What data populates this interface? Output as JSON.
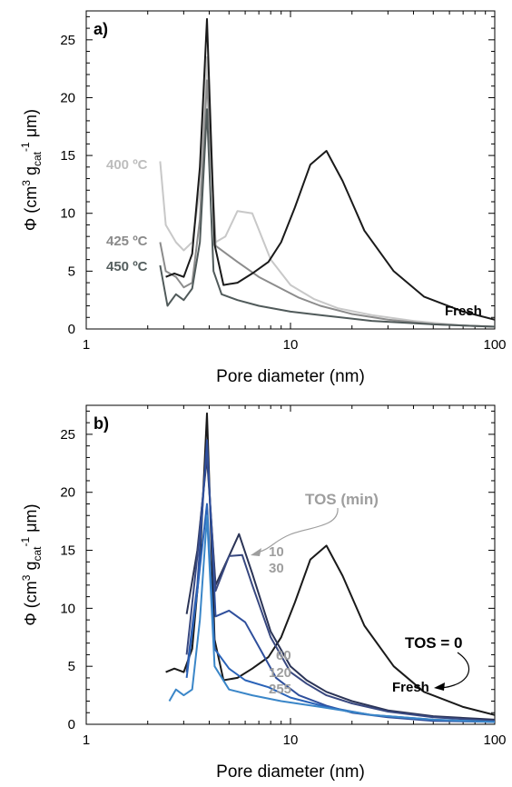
{
  "chart_data": [
    {
      "type": "line",
      "panel_label": "a)",
      "xlabel": "Pore diameter (nm)",
      "ylabel_main": "Φ (cm",
      "ylabel_parts": {
        "a": "3",
        "b": " g",
        "c": "cat",
        "d": "-1",
        "e": " μm)"
      },
      "xscale": "log",
      "xlim": [
        1,
        100
      ],
      "ylim": [
        0,
        27.5
      ],
      "x_ticks": [
        1,
        10,
        100
      ],
      "x_tick_labels": [
        "1",
        "10",
        "100"
      ],
      "y_ticks": [
        0,
        5,
        10,
        15,
        20,
        25
      ],
      "y_tick_labels": [
        "0",
        "5",
        "10",
        "15",
        "20",
        "25"
      ],
      "series": [
        {
          "name": "400 ºC",
          "color": "#c8c8c8",
          "label_color": "#bdbdbd",
          "x": [
            2.3,
            2.45,
            2.75,
            3.0,
            3.3,
            3.6,
            3.9,
            4.3,
            4.8,
            5.5,
            6.5,
            8,
            10,
            13,
            17,
            25,
            40,
            70,
            100
          ],
          "y": [
            14.5,
            9.0,
            7.5,
            6.8,
            7.5,
            12.0,
            23.5,
            7.5,
            8.0,
            10.2,
            10.0,
            6.0,
            3.8,
            2.6,
            1.8,
            1.2,
            0.7,
            0.3,
            0.2
          ]
        },
        {
          "name": "425 ºC",
          "color": "#8c8c8c",
          "label_color": "#8a8a8a",
          "x": [
            2.3,
            2.45,
            2.75,
            3.0,
            3.3,
            3.6,
            3.9,
            4.3,
            5.5,
            7,
            9,
            11,
            14,
            20,
            30,
            50,
            100
          ],
          "y": [
            7.5,
            5.0,
            4.5,
            3.6,
            4.0,
            9.5,
            21.5,
            7.2,
            5.8,
            4.5,
            3.5,
            2.7,
            2.0,
            1.3,
            0.8,
            0.4,
            0.2
          ]
        },
        {
          "name": "450 ºC",
          "color": "#505a5a",
          "label_color": "#555f5f",
          "x": [
            2.3,
            2.5,
            2.75,
            3.0,
            3.3,
            3.6,
            3.9,
            4.2,
            4.6,
            5.5,
            7,
            10,
            14,
            25,
            50,
            100
          ],
          "y": [
            5.5,
            2.0,
            3.0,
            2.5,
            3.5,
            7.5,
            19.0,
            5.0,
            3.0,
            2.5,
            2.0,
            1.5,
            1.2,
            0.7,
            0.4,
            0.2
          ]
        },
        {
          "name": "Fresh",
          "color": "#1a1a1a",
          "label_color": "#000000",
          "x": [
            2.45,
            2.7,
            3.0,
            3.3,
            3.6,
            3.9,
            4.25,
            4.7,
            5.5,
            6.5,
            7.8,
            9.0,
            10.5,
            12.5,
            15,
            18,
            23,
            32,
            45,
            70,
            100
          ],
          "y": [
            4.5,
            4.8,
            4.5,
            6.5,
            14.0,
            26.8,
            7.3,
            3.8,
            4.0,
            4.8,
            5.8,
            7.5,
            10.5,
            14.2,
            15.4,
            12.8,
            8.5,
            5.0,
            2.8,
            1.5,
            0.8
          ]
        }
      ],
      "annotations": []
    },
    {
      "type": "line",
      "panel_label": "b)",
      "xlabel": "Pore diameter (nm)",
      "ylabel_main": "Φ (cm",
      "ylabel_parts": {
        "a": "3",
        "b": " g",
        "c": "cat",
        "d": "-1",
        "e": " μm)"
      },
      "xscale": "log",
      "xlim": [
        1,
        100
      ],
      "ylim": [
        0,
        27.5
      ],
      "x_ticks": [
        1,
        10,
        100
      ],
      "x_tick_labels": [
        "1",
        "10",
        "100"
      ],
      "y_ticks": [
        0,
        5,
        10,
        15,
        20,
        25
      ],
      "y_tick_labels": [
        "0",
        "5",
        "10",
        "15",
        "20",
        "25"
      ],
      "series": [
        {
          "name": "Fresh",
          "color": "#1a1a1a",
          "label_color": "#000000",
          "x": [
            2.45,
            2.7,
            3.0,
            3.3,
            3.6,
            3.9,
            4.25,
            4.7,
            5.5,
            6.5,
            7.8,
            9.0,
            10.5,
            12.5,
            15,
            18,
            23,
            32,
            45,
            70,
            100
          ],
          "y": [
            4.5,
            4.8,
            4.5,
            6.5,
            14.0,
            26.8,
            7.3,
            3.8,
            4.0,
            4.8,
            5.8,
            7.5,
            10.5,
            14.2,
            15.4,
            12.8,
            8.5,
            5.0,
            2.8,
            1.5,
            0.8
          ]
        },
        {
          "name": "10",
          "color": "#2b3456",
          "label_color": "#9e9e9e",
          "x": [
            3.1,
            3.5,
            3.9,
            4.3,
            5.0,
            5.6,
            6.5,
            8,
            10,
            12,
            15,
            20,
            30,
            50,
            100
          ],
          "y": [
            9.5,
            15.0,
            23.0,
            12.0,
            14.5,
            16.4,
            13.0,
            8.0,
            5.0,
            3.8,
            2.8,
            2.0,
            1.2,
            0.7,
            0.4
          ]
        },
        {
          "name": "30",
          "color": "#384880",
          "label_color": "#9e9e9e",
          "x": [
            3.1,
            3.5,
            3.9,
            4.3,
            5.0,
            5.8,
            6.5,
            8,
            10,
            12,
            15,
            20,
            30,
            50,
            100
          ],
          "y": [
            6.0,
            14.5,
            23.5,
            11.5,
            14.5,
            14.6,
            12.0,
            7.5,
            4.5,
            3.5,
            2.5,
            1.8,
            1.1,
            0.6,
            0.3
          ]
        },
        {
          "name": "60",
          "color": "#2f4f9c",
          "label_color": "#9e9e9e",
          "x": [
            3.1,
            3.5,
            3.9,
            4.3,
            5.0,
            6.0,
            7.2,
            8.5,
            11,
            15,
            20,
            30,
            50,
            100
          ],
          "y": [
            4.5,
            12.0,
            24.5,
            9.3,
            9.8,
            8.8,
            6.3,
            4.0,
            2.5,
            1.6,
            1.0,
            0.6,
            0.3,
            0.2
          ]
        },
        {
          "name": "120",
          "color": "#2a63b8",
          "label_color": "#9e9e9e",
          "x": [
            3.1,
            3.5,
            3.9,
            4.25,
            5.0,
            6.0,
            7.8,
            10,
            15,
            25,
            50,
            100
          ],
          "y": [
            4.0,
            11.5,
            19.0,
            6.5,
            4.8,
            3.8,
            3.2,
            2.3,
            1.5,
            0.8,
            0.4,
            0.2
          ]
        },
        {
          "name": "255",
          "color": "#3a86c8",
          "label_color": "#9e9e9e",
          "x": [
            2.55,
            2.75,
            3.0,
            3.3,
            3.6,
            3.9,
            4.25,
            5.0,
            6.5,
            9,
            14,
            25,
            50,
            100
          ],
          "y": [
            2.0,
            3.0,
            2.5,
            3.0,
            9.0,
            18.0,
            5.0,
            3.0,
            2.5,
            2.0,
            1.5,
            0.8,
            0.4,
            0.2
          ]
        }
      ],
      "annotations": [
        {
          "text": "TOS (min)",
          "color": "#9e9e9e"
        },
        {
          "text": "TOS = 0",
          "color": "#000000"
        }
      ]
    }
  ]
}
